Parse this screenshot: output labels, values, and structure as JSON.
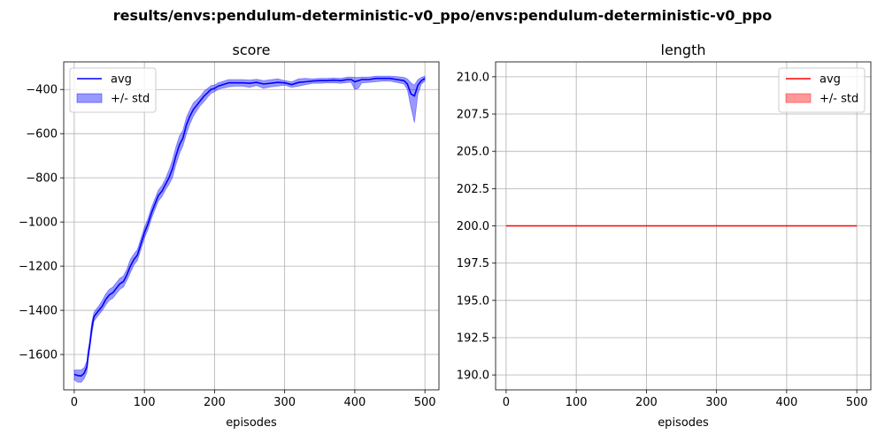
{
  "figure": {
    "suptitle": "results/envs:pendulum-deterministic-v0_ppo/envs:pendulum-deterministic-v0_ppo"
  },
  "chart_data": [
    {
      "type": "line",
      "title": "score",
      "xlabel": "episodes",
      "ylabel": "",
      "xlim": [
        -15,
        520
      ],
      "ylim": [
        -1760,
        -275
      ],
      "xticks": [
        0,
        100,
        200,
        300,
        400,
        500
      ],
      "yticks": [
        -1600,
        -1400,
        -1200,
        -1000,
        -800,
        -600,
        -400
      ],
      "grid": true,
      "legend_position": "upper-left",
      "legend": [
        {
          "label": "avg",
          "kind": "line",
          "color": "#0000ff"
        },
        {
          "label": "+/- std",
          "kind": "band",
          "color": "#0000ff"
        }
      ],
      "series": [
        {
          "name": "avg",
          "color": "#0000ff",
          "x": [
            0,
            5,
            10,
            14,
            18,
            20,
            22,
            25,
            28,
            30,
            35,
            40,
            45,
            50,
            55,
            60,
            65,
            70,
            75,
            80,
            85,
            90,
            95,
            100,
            105,
            110,
            115,
            120,
            125,
            130,
            135,
            140,
            145,
            150,
            155,
            160,
            165,
            170,
            175,
            180,
            185,
            190,
            195,
            200,
            205,
            210,
            215,
            220,
            230,
            240,
            250,
            260,
            270,
            280,
            290,
            300,
            310,
            320,
            330,
            340,
            350,
            360,
            370,
            380,
            390,
            395,
            400,
            405,
            410,
            420,
            430,
            440,
            450,
            460,
            470,
            475,
            480,
            485,
            490,
            495,
            500
          ],
          "y": [
            -1690,
            -1695,
            -1697,
            -1685,
            -1655,
            -1600,
            -1560,
            -1480,
            -1430,
            -1420,
            -1400,
            -1380,
            -1350,
            -1330,
            -1320,
            -1300,
            -1280,
            -1270,
            -1240,
            -1200,
            -1170,
            -1150,
            -1100,
            -1050,
            -1010,
            -960,
            -920,
            -880,
            -860,
            -830,
            -800,
            -760,
            -700,
            -650,
            -620,
            -560,
            -520,
            -490,
            -470,
            -450,
            -430,
            -415,
            -400,
            -395,
            -385,
            -380,
            -375,
            -370,
            -370,
            -370,
            -372,
            -368,
            -375,
            -372,
            -368,
            -370,
            -378,
            -368,
            -365,
            -362,
            -360,
            -360,
            -358,
            -360,
            -355,
            -355,
            -365,
            -360,
            -355,
            -355,
            -350,
            -350,
            -350,
            -355,
            -360,
            -375,
            -420,
            -430,
            -380,
            -360,
            -350
          ],
          "std_lower": [
            -1715,
            -1725,
            -1725,
            -1710,
            -1680,
            -1625,
            -1580,
            -1510,
            -1450,
            -1440,
            -1420,
            -1400,
            -1375,
            -1355,
            -1345,
            -1325,
            -1305,
            -1295,
            -1265,
            -1230,
            -1195,
            -1175,
            -1125,
            -1075,
            -1035,
            -985,
            -945,
            -905,
            -885,
            -855,
            -830,
            -800,
            -740,
            -690,
            -655,
            -600,
            -555,
            -520,
            -495,
            -472,
            -455,
            -435,
            -418,
            -410,
            -400,
            -395,
            -392,
            -388,
            -385,
            -385,
            -390,
            -382,
            -395,
            -388,
            -385,
            -380,
            -390,
            -385,
            -378,
            -372,
            -372,
            -370,
            -370,
            -372,
            -368,
            -368,
            -400,
            -395,
            -370,
            -368,
            -365,
            -362,
            -362,
            -368,
            -375,
            -400,
            -480,
            -550,
            -420,
            -375,
            -362
          ],
          "std_upper": [
            -1670,
            -1670,
            -1670,
            -1660,
            -1630,
            -1575,
            -1540,
            -1455,
            -1410,
            -1400,
            -1380,
            -1355,
            -1325,
            -1305,
            -1295,
            -1275,
            -1255,
            -1245,
            -1215,
            -1170,
            -1145,
            -1125,
            -1075,
            -1025,
            -985,
            -935,
            -895,
            -855,
            -835,
            -805,
            -765,
            -720,
            -660,
            -610,
            -585,
            -525,
            -490,
            -460,
            -445,
            -430,
            -408,
            -395,
            -382,
            -380,
            -370,
            -365,
            -360,
            -355,
            -355,
            -355,
            -357,
            -354,
            -360,
            -356,
            -352,
            -360,
            -365,
            -352,
            -350,
            -352,
            -350,
            -350,
            -348,
            -350,
            -344,
            -344,
            -345,
            -345,
            -344,
            -344,
            -340,
            -340,
            -340,
            -342,
            -345,
            -352,
            -370,
            -380,
            -355,
            -345,
            -340
          ]
        }
      ]
    },
    {
      "type": "line",
      "title": "length",
      "xlabel": "episodes",
      "ylabel": "",
      "xlim": [
        -15,
        520
      ],
      "ylim": [
        189,
        211
      ],
      "xticks": [
        0,
        100,
        200,
        300,
        400,
        500
      ],
      "yticks": [
        190.0,
        192.5,
        195.0,
        197.5,
        200.0,
        202.5,
        205.0,
        207.5,
        210.0
      ],
      "ytick_labels": [
        "190.0",
        "192.5",
        "195.0",
        "197.5",
        "200.0",
        "202.5",
        "205.0",
        "207.5",
        "210.0"
      ],
      "grid": true,
      "legend_position": "upper-right",
      "legend": [
        {
          "label": "avg",
          "kind": "line",
          "color": "#ff0000"
        },
        {
          "label": "+/- std",
          "kind": "band",
          "color": "#ff0000"
        }
      ],
      "series": [
        {
          "name": "avg",
          "color": "#ff0000",
          "x": [
            0,
            500
          ],
          "y": [
            200,
            200
          ],
          "std_lower": [
            200,
            200
          ],
          "std_upper": [
            200,
            200
          ]
        }
      ]
    }
  ]
}
